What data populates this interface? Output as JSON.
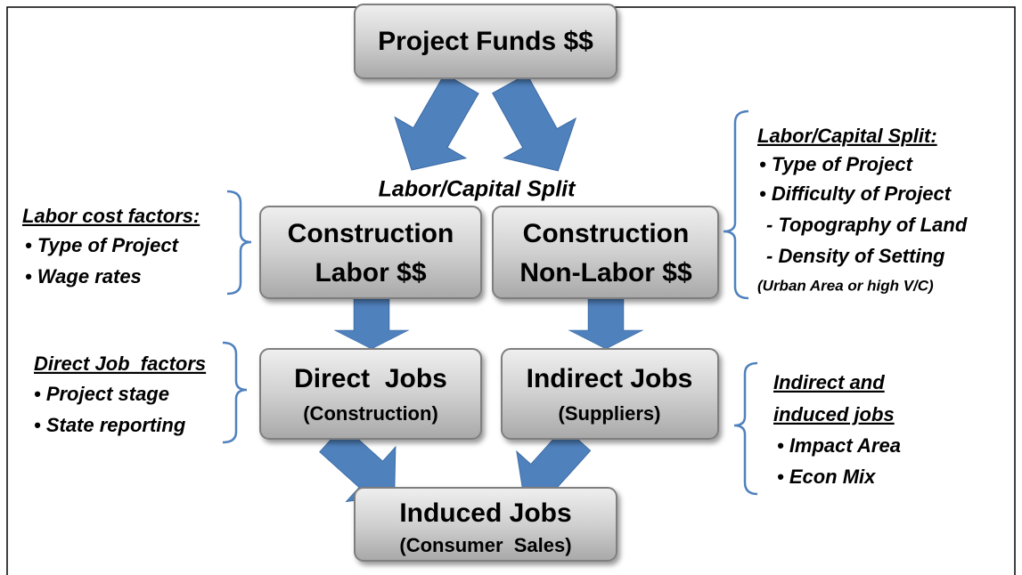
{
  "nodes": [
    {
      "lines": [
        "Project Funds $$"
      ]
    },
    {
      "lines": [
        "Construction",
        "Labor $$"
      ]
    },
    {
      "lines": [
        "Construction",
        "Non-Labor $$"
      ]
    },
    {
      "lines": [
        "Direct  Jobs",
        "(Construction)"
      ]
    },
    {
      "lines": [
        "Indirect Jobs",
        "(Suppliers)"
      ]
    },
    {
      "lines": [
        "Induced Jobs",
        "(Consumer  Sales)"
      ]
    }
  ],
  "center_label": "Labor/Capital Split",
  "notes": [
    {
      "heading": [
        "Labor cost factors:"
      ],
      "items": [
        "•  Type of Project",
        "•  Wage rates"
      ]
    },
    {
      "heading": [
        "Direct Job  factors"
      ],
      "items": [
        "•  Project stage",
        "•  State reporting"
      ]
    },
    {
      "heading": [
        "Labor/Capital Split:"
      ],
      "items": [
        "• Type of Project",
        "• Difficulty of Project",
        "- Topography of Land",
        "- Density of Setting",
        "(Urban Area or high V/C)"
      ]
    },
    {
      "heading": [
        "Indirect and",
        "induced jobs"
      ],
      "items": [
        "• Impact Area",
        "• Econ Mix"
      ]
    }
  ]
}
